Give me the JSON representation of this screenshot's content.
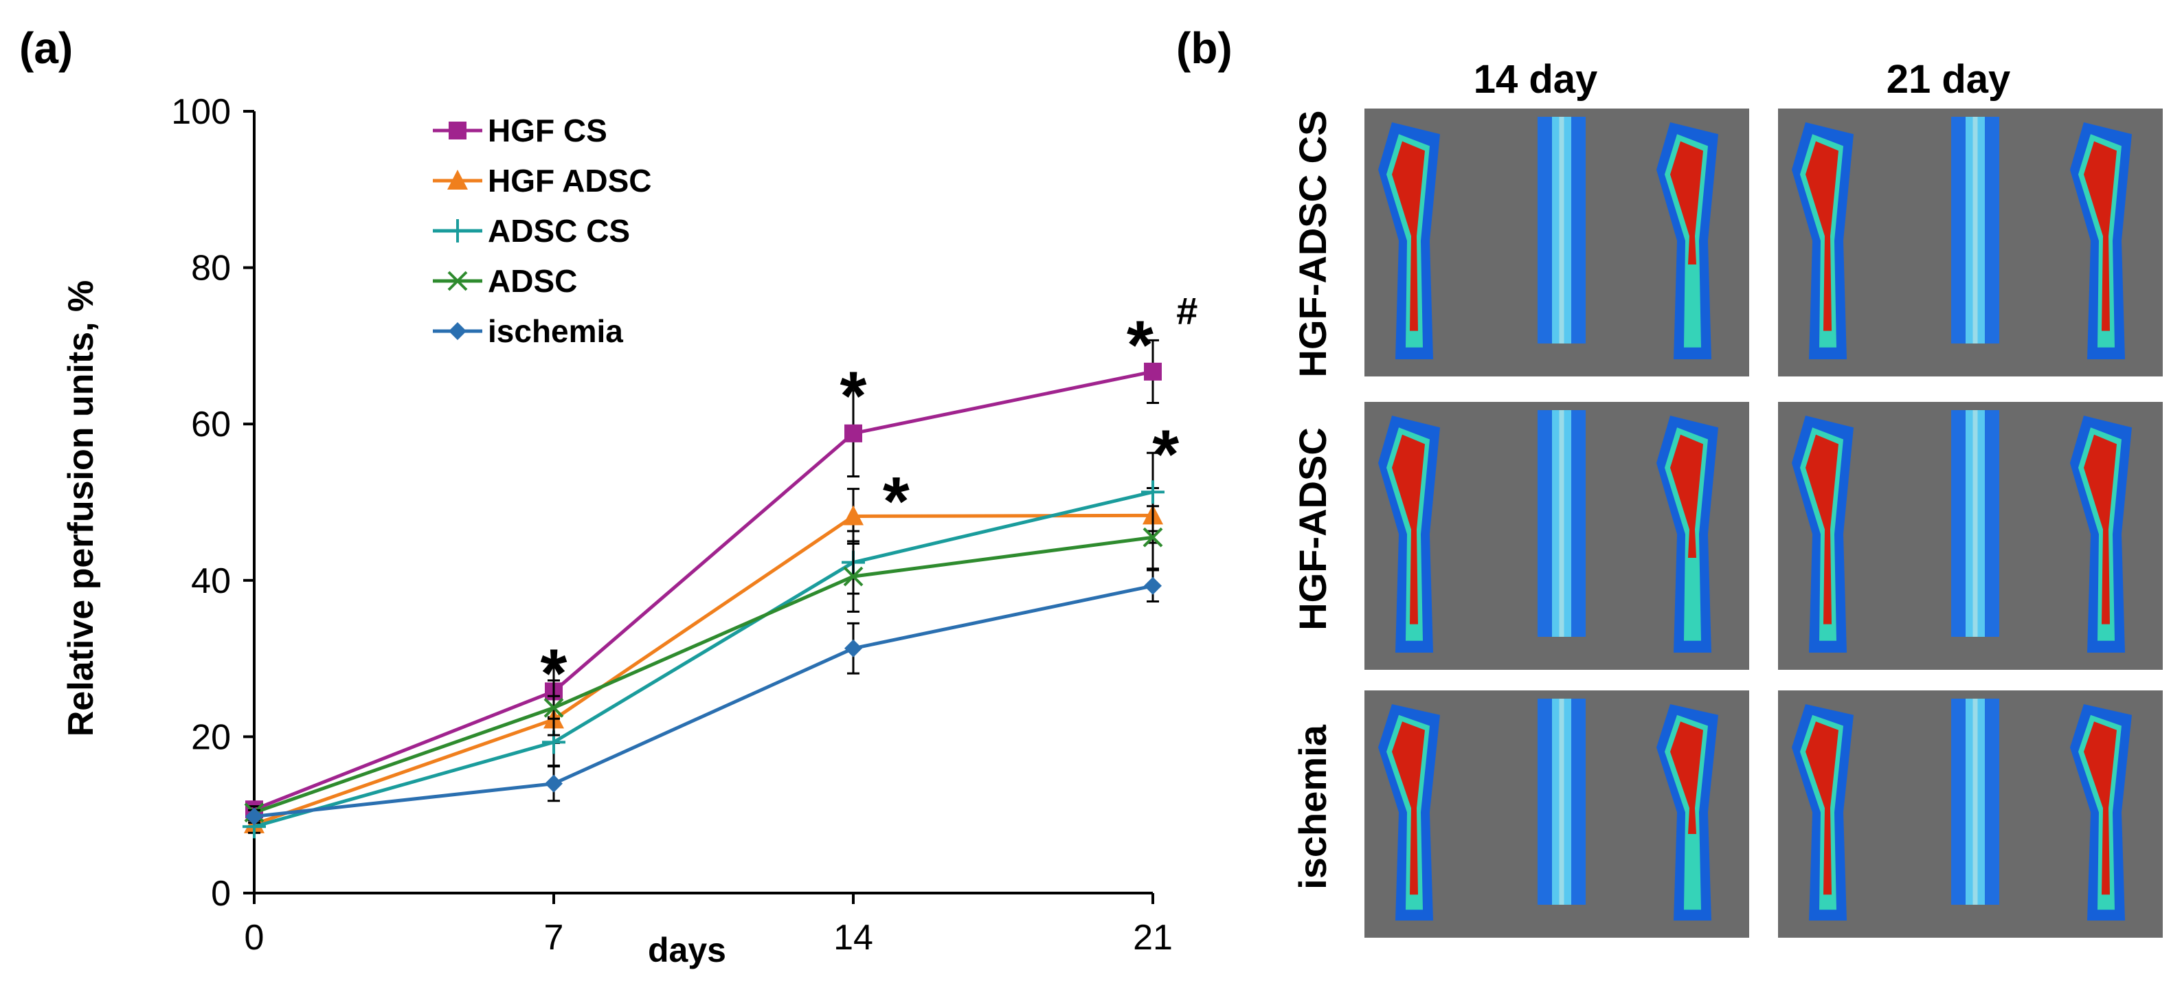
{
  "colors": {
    "axis": "#000000",
    "hgf_cs": "#a0238e",
    "hgf_adsc": "#f07f1d",
    "adsc_cs": "#1a9c9c",
    "adsc": "#2e8b2e",
    "ischemia": "#2a6fb0",
    "image_bg": "#6b6b6b"
  },
  "panel_a": {
    "label": "(a)",
    "xlabel": "days",
    "ylabel": "Relative perfusion units, %"
  },
  "panel_b": {
    "label": "(b)",
    "col_headers": [
      "14 day",
      "21 day"
    ],
    "row_labels": [
      "HGF-ADSC CS",
      "HGF-ADSC",
      "ischemia"
    ]
  },
  "chart_data": {
    "type": "line",
    "x": [
      0,
      7,
      14,
      21
    ],
    "xticks": [
      "0",
      "7",
      "14",
      "21"
    ],
    "ylim": [
      0,
      100
    ],
    "yticks": [
      "0",
      "20",
      "40",
      "60",
      "80",
      "100"
    ],
    "xlabel": "days",
    "ylabel": "Relative perfusion units, %",
    "legend_position": "top-left",
    "series": [
      {
        "name": "HGF CS",
        "color": "#a0238e",
        "marker": "square",
        "values": [
          10.7,
          25.8,
          58.8,
          66.7
        ],
        "errors": [
          0.8,
          3.3,
          5.5,
          4.0
        ]
      },
      {
        "name": "HGF ADSC",
        "color": "#f07f1d",
        "marker": "triangle",
        "values": [
          8.8,
          22.2,
          48.2,
          48.3
        ],
        "errors": [
          0.8,
          3.0,
          3.5,
          3.5
        ]
      },
      {
        "name": "ADSC CS",
        "color": "#1a9c9c",
        "marker": "plus",
        "values": [
          8.5,
          19.3,
          42.3,
          51.3
        ],
        "errors": [
          0.8,
          3.0,
          4.0,
          5.0
        ]
      },
      {
        "name": "ADSC",
        "color": "#2e8b2e",
        "marker": "x",
        "values": [
          10.3,
          23.7,
          40.5,
          45.5
        ],
        "errors": [
          0.8,
          3.5,
          4.5,
          4.0
        ]
      },
      {
        "name": "ischemia",
        "color": "#2a6fb0",
        "marker": "diamond",
        "values": [
          9.8,
          14.0,
          31.3,
          39.3
        ],
        "errors": [
          0.8,
          2.2,
          3.2,
          2.0
        ]
      }
    ],
    "annotations": [
      {
        "x": 7,
        "y": 29.5,
        "text": "*"
      },
      {
        "x": 14,
        "y": 65,
        "text": "*"
      },
      {
        "x": 15,
        "y": 51.5,
        "text": "*"
      },
      {
        "x": 20.7,
        "y": 71.5,
        "text": "*"
      },
      {
        "x": 21.8,
        "y": 74.5,
        "text": "#"
      },
      {
        "x": 21.3,
        "y": 57.5,
        "text": "*"
      }
    ]
  }
}
